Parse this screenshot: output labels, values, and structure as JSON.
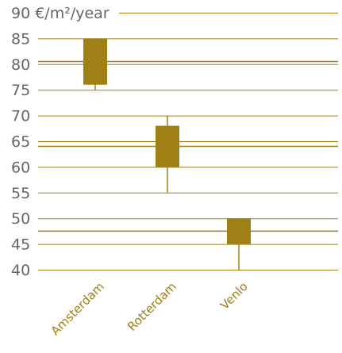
{
  "chart_data": {
    "type": "bar",
    "title": "",
    "xlabel": "",
    "ylabel": "",
    "unit_label": "€/m²/year",
    "categories": [
      "Amsterdam",
      "Rotterdam",
      "Venlo"
    ],
    "series": [
      {
        "low": [
          76,
          60,
          45
        ],
        "high": [
          85,
          68,
          50
        ],
        "range_low": [
          75,
          55,
          40
        ],
        "range_high": [
          85,
          70,
          50
        ]
      }
    ],
    "ylim": [
      40,
      90
    ],
    "yticks": [
      40,
      45,
      50,
      55,
      60,
      65,
      70,
      75,
      80,
      85,
      90
    ],
    "grid": true,
    "colors": {
      "accent": "#a07f14",
      "tick_text": "#666666",
      "background": "#ffffff"
    }
  }
}
